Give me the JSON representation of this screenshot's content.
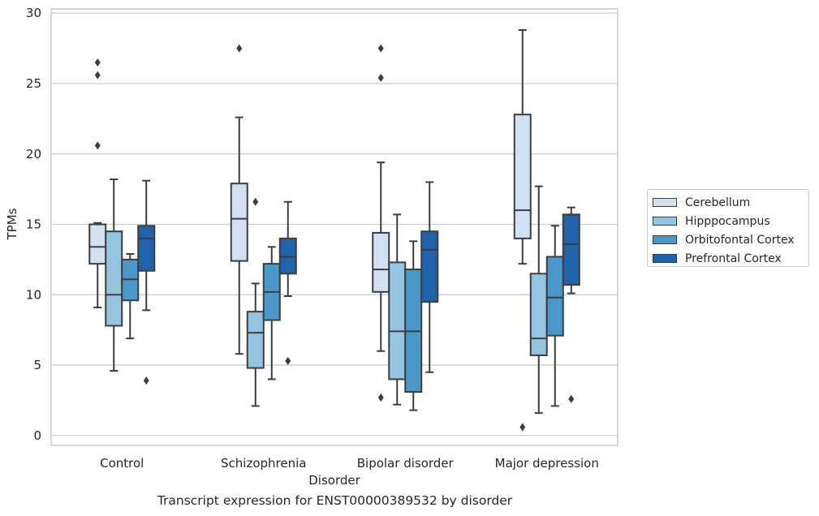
{
  "chart_data": {
    "type": "box",
    "ylabel": "TPMs",
    "xlabel": "Disorder",
    "caption": "Transcript expression for ENST00000389532 by disorder",
    "ylim": [
      -0.7,
      30.3
    ],
    "yticks": [
      0,
      5,
      10,
      15,
      20,
      25,
      30
    ],
    "grid": "horizontal",
    "legend_position": "right",
    "categories": [
      "Control",
      "Schizophrenia",
      "Bipolar disorder",
      "Major depression"
    ],
    "series": [
      {
        "name": "Cerebellum",
        "color": "#d0e1f2",
        "boxes": [
          {
            "whisker_low": 9.1,
            "q1": 12.2,
            "median": 13.4,
            "q3": 15.0,
            "whisker_high": 15.1,
            "outliers": [
              20.6,
              25.6,
              26.5
            ]
          },
          {
            "whisker_low": 5.8,
            "q1": 12.4,
            "median": 15.4,
            "q3": 17.9,
            "whisker_high": 22.6,
            "outliers": [
              27.5
            ]
          },
          {
            "whisker_low": 6.0,
            "q1": 10.2,
            "median": 11.8,
            "q3": 14.4,
            "whisker_high": 19.4,
            "outliers": [
              2.7,
              25.4,
              27.5
            ]
          },
          {
            "whisker_low": 12.2,
            "q1": 14.0,
            "median": 16.0,
            "q3": 22.8,
            "whisker_high": 28.8,
            "outliers": [
              0.6
            ]
          }
        ]
      },
      {
        "name": "Hipppocampus",
        "color": "#94c4df",
        "boxes": [
          {
            "whisker_low": 4.6,
            "q1": 7.8,
            "median": 10.0,
            "q3": 14.5,
            "whisker_high": 18.2,
            "outliers": []
          },
          {
            "whisker_low": 2.1,
            "q1": 4.8,
            "median": 7.3,
            "q3": 8.8,
            "whisker_high": 10.8,
            "outliers": [
              16.6
            ]
          },
          {
            "whisker_low": 2.2,
            "q1": 4.0,
            "median": 7.4,
            "q3": 12.3,
            "whisker_high": 15.7,
            "outliers": []
          },
          {
            "whisker_low": 1.6,
            "q1": 5.7,
            "median": 6.9,
            "q3": 11.5,
            "whisker_high": 17.7,
            "outliers": []
          }
        ]
      },
      {
        "name": "Orbitofontal Cortex",
        "color": "#4a98c9",
        "boxes": [
          {
            "whisker_low": 6.9,
            "q1": 9.6,
            "median": 11.1,
            "q3": 12.5,
            "whisker_high": 12.9,
            "outliers": []
          },
          {
            "whisker_low": 4.0,
            "q1": 8.2,
            "median": 10.2,
            "q3": 12.2,
            "whisker_high": 13.4,
            "outliers": []
          },
          {
            "whisker_low": 1.8,
            "q1": 3.1,
            "median": 7.4,
            "q3": 11.8,
            "whisker_high": 13.8,
            "outliers": []
          },
          {
            "whisker_low": 2.1,
            "q1": 7.1,
            "median": 9.8,
            "q3": 12.7,
            "whisker_high": 14.9,
            "outliers": []
          }
        ]
      },
      {
        "name": "Prefrontal Cortex",
        "color": "#2163aa",
        "boxes": [
          {
            "whisker_low": 8.9,
            "q1": 11.7,
            "median": 14.0,
            "q3": 14.9,
            "whisker_high": 18.1,
            "outliers": [
              3.9
            ]
          },
          {
            "whisker_low": 9.9,
            "q1": 11.5,
            "median": 12.7,
            "q3": 14.0,
            "whisker_high": 16.6,
            "outliers": [
              5.3
            ]
          },
          {
            "whisker_low": 4.5,
            "q1": 9.5,
            "median": 13.2,
            "q3": 14.5,
            "whisker_high": 18.0,
            "outliers": []
          },
          {
            "whisker_low": 10.1,
            "q1": 10.7,
            "median": 13.6,
            "q3": 15.7,
            "whisker_high": 16.2,
            "outliers": [
              2.6
            ]
          }
        ]
      }
    ]
  }
}
